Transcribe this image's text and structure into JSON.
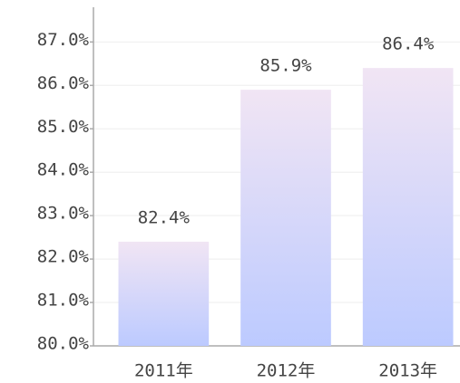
{
  "chart_data": {
    "type": "bar",
    "categories": [
      "2011年",
      "2012年",
      "2013年"
    ],
    "values": [
      82.4,
      85.9,
      86.4
    ],
    "value_labels": [
      "82.4%",
      "85.9%",
      "86.4%"
    ],
    "gradient": [
      "#f1e5f4",
      "#bccaff"
    ],
    "ylim": [
      80,
      87.8
    ],
    "yticks": [
      {
        "value": 80,
        "label": "80.0%"
      },
      {
        "value": 81,
        "label": "81.0%"
      },
      {
        "value": 82,
        "label": "82.0%"
      },
      {
        "value": 83,
        "label": "83.0%"
      },
      {
        "value": 84,
        "label": "84.0%"
      },
      {
        "value": 85,
        "label": "85.0%"
      },
      {
        "value": 86,
        "label": "86.0%"
      },
      {
        "value": 87,
        "label": "87.0%"
      }
    ],
    "grid": true
  }
}
